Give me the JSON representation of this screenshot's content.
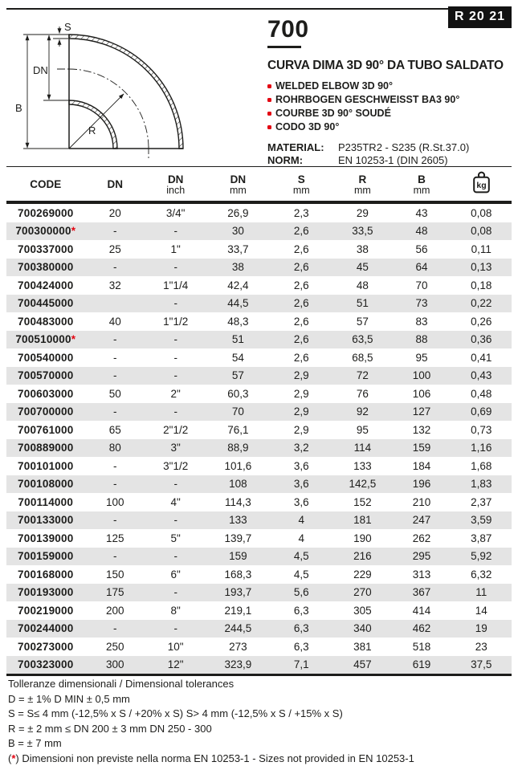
{
  "header": {
    "badge": "R 20 21",
    "product_code": "700",
    "title": "CURVA DIMA 3D 90° DA TUBO SALDATO",
    "bullets": [
      "WELDED ELBOW 3D 90°",
      "ROHRBOGEN GESCHWEISST BA3 90°",
      "COURBE 3D 90° SOUDÉ",
      "CODO 3D 90°"
    ],
    "material_label": "MATERIAL:",
    "material_value": "P235TR2 - S235 (R.St.37.0)",
    "norm_label": "NORM:",
    "norm_value": "EN 10253-1 (DIN 2605)"
  },
  "diagram": {
    "label_s": "S",
    "label_dn": "DN",
    "label_b": "B",
    "label_r": "R"
  },
  "table": {
    "headers": [
      {
        "top": "CODE"
      },
      {
        "top": "DN"
      },
      {
        "top": "DN",
        "sub": "inch"
      },
      {
        "top": "DN",
        "sub": "mm"
      },
      {
        "top": "S",
        "sub": "mm"
      },
      {
        "top": "R",
        "sub": "mm"
      },
      {
        "top": "B",
        "sub": "mm"
      },
      {
        "icon": "kg"
      }
    ],
    "star_glyph": "*",
    "rows": [
      {
        "code": "700269000",
        "star": false,
        "cells": [
          "20",
          "3/4\"",
          "26,9",
          "2,3",
          "29",
          "43",
          "0,08"
        ]
      },
      {
        "code": "700300000",
        "star": true,
        "cells": [
          "-",
          "-",
          "30",
          "2,6",
          "33,5",
          "48",
          "0,08"
        ]
      },
      {
        "code": "700337000",
        "star": false,
        "cells": [
          "25",
          "1\"",
          "33,7",
          "2,6",
          "38",
          "56",
          "0,11"
        ]
      },
      {
        "code": "700380000",
        "star": false,
        "cells": [
          "-",
          "-",
          "38",
          "2,6",
          "45",
          "64",
          "0,13"
        ]
      },
      {
        "code": "700424000",
        "star": false,
        "cells": [
          "32",
          "1\"1/4",
          "42,4",
          "2,6",
          "48",
          "70",
          "0,18"
        ]
      },
      {
        "code": "700445000",
        "star": false,
        "cells": [
          "",
          "-",
          "44,5",
          "2,6",
          "51",
          "73",
          "0,22"
        ]
      },
      {
        "code": "700483000",
        "star": false,
        "cells": [
          "40",
          "1\"1/2",
          "48,3",
          "2,6",
          "57",
          "83",
          "0,26"
        ]
      },
      {
        "code": "700510000",
        "star": true,
        "cells": [
          "-",
          "-",
          "51",
          "2,6",
          "63,5",
          "88",
          "0,36"
        ]
      },
      {
        "code": "700540000",
        "star": false,
        "cells": [
          "-",
          "-",
          "54",
          "2,6",
          "68,5",
          "95",
          "0,41"
        ]
      },
      {
        "code": "700570000",
        "star": false,
        "cells": [
          "-",
          "-",
          "57",
          "2,9",
          "72",
          "100",
          "0,43"
        ]
      },
      {
        "code": "700603000",
        "star": false,
        "cells": [
          "50",
          "2\"",
          "60,3",
          "2,9",
          "76",
          "106",
          "0,48"
        ]
      },
      {
        "code": "700700000",
        "star": false,
        "cells": [
          "-",
          "-",
          "70",
          "2,9",
          "92",
          "127",
          "0,69"
        ]
      },
      {
        "code": "700761000",
        "star": false,
        "cells": [
          "65",
          "2\"1/2",
          "76,1",
          "2,9",
          "95",
          "132",
          "0,73"
        ]
      },
      {
        "code": "700889000",
        "star": false,
        "cells": [
          "80",
          "3\"",
          "88,9",
          "3,2",
          "114",
          "159",
          "1,16"
        ]
      },
      {
        "code": "700101000",
        "star": false,
        "cells": [
          "-",
          "3\"1/2",
          "101,6",
          "3,6",
          "133",
          "184",
          "1,68"
        ]
      },
      {
        "code": "700108000",
        "star": false,
        "cells": [
          "-",
          "-",
          "108",
          "3,6",
          "142,5",
          "196",
          "1,83"
        ]
      },
      {
        "code": "700114000",
        "star": false,
        "cells": [
          "100",
          "4\"",
          "114,3",
          "3,6",
          "152",
          "210",
          "2,37"
        ]
      },
      {
        "code": "700133000",
        "star": false,
        "cells": [
          "-",
          "-",
          "133",
          "4",
          "181",
          "247",
          "3,59"
        ]
      },
      {
        "code": "700139000",
        "star": false,
        "cells": [
          "125",
          "5\"",
          "139,7",
          "4",
          "190",
          "262",
          "3,87"
        ]
      },
      {
        "code": "700159000",
        "star": false,
        "cells": [
          "-",
          "-",
          "159",
          "4,5",
          "216",
          "295",
          "5,92"
        ]
      },
      {
        "code": "700168000",
        "star": false,
        "cells": [
          "150",
          "6\"",
          "168,3",
          "4,5",
          "229",
          "313",
          "6,32"
        ]
      },
      {
        "code": "700193000",
        "star": false,
        "cells": [
          "175",
          "-",
          "193,7",
          "5,6",
          "270",
          "367",
          "11"
        ]
      },
      {
        "code": "700219000",
        "star": false,
        "cells": [
          "200",
          "8\"",
          "219,1",
          "6,3",
          "305",
          "414",
          "14"
        ]
      },
      {
        "code": "700244000",
        "star": false,
        "cells": [
          "-",
          "-",
          "244,5",
          "6,3",
          "340",
          "462",
          "19"
        ]
      },
      {
        "code": "700273000",
        "star": false,
        "cells": [
          "250",
          "10\"",
          "273",
          "6,3",
          "381",
          "518",
          "23"
        ]
      },
      {
        "code": "700323000",
        "star": false,
        "cells": [
          "300",
          "12\"",
          "323,9",
          "7,1",
          "457",
          "619",
          "37,5"
        ]
      }
    ]
  },
  "footer": {
    "lines": [
      "Tolleranze dimensionali / Dimensional tolerances",
      "D = ± 1% D MIN ± 0,5 mm",
      "S = S≤ 4 mm (-12,5% x S / +20% x S) S> 4 mm (-12,5% x S / +15% x S)",
      "R = ± 2 mm ≤ DN 200 ± 3 mm DN 250 - 300",
      "B = ± 7 mm"
    ],
    "footnote": {
      "pre": "(",
      "star": "*",
      "post": ") Dimensioni non previste nella norma EN 10253-1 - Sizes not provided in EN 10253-1"
    }
  },
  "colors": {
    "ink": "#1d1d1b",
    "accent_red": "#e30613",
    "row_shade": "#e4e4e4"
  }
}
